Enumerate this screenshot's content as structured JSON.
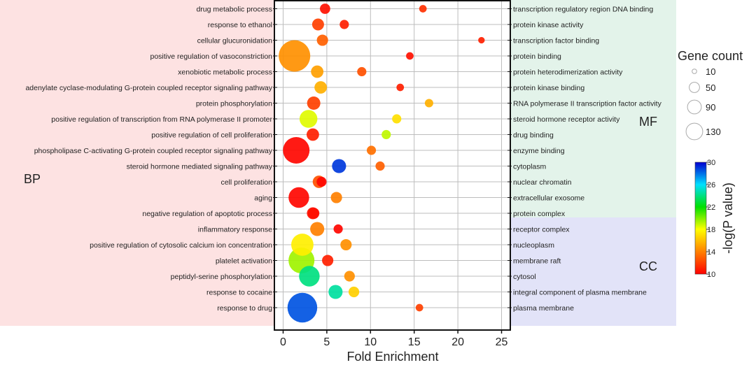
{
  "chart_data": {
    "type": "scatter",
    "xlabel": "Fold Enrichment",
    "xlim": [
      -1,
      26
    ],
    "xticks": [
      0,
      5,
      10,
      15,
      20,
      25
    ],
    "grid": true,
    "groups": {
      "BP": "BP",
      "MF": "MF",
      "CC": "CC"
    },
    "group_colors": {
      "BP": "#fde2e2",
      "MF": "#e3f3ea",
      "CC": "#e2e3f8"
    },
    "left_terms": [
      "drug metabolic process",
      "response to ethanol",
      "cellular glucuronidation",
      "positive regulation of vasoconstriction",
      "xenobiotic metabolic process",
      "adenylate cyclase-modulating G-protein coupled receptor signaling pathway",
      "protein phosphorylation",
      "positive regulation of transcription from RNA polymerase II promoter",
      "positive regulation of cell proliferation",
      "phospholipase C-activating G-protein coupled receptor signaling pathway",
      "steroid hormone mediated signaling pathway",
      "cell proliferation",
      "aging",
      "negative regulation of apoptotic process",
      "inflammatory response",
      "positive regulation of cytosolic calcium ion concentration",
      "platelet activation",
      "peptidyl-serine phosphorylation",
      "response to cocaine",
      "response to drug"
    ],
    "right_terms": [
      "transcription regulatory region DNA binding",
      "protein kinase activity",
      "transcription factor binding",
      "protein binding",
      "protein heterodimerization activity",
      "protein kinase binding",
      "RNA polymerase II transcription factor activity",
      "steroid hormone receptor activity",
      "drug binding",
      "enzyme binding",
      "cytoplasm",
      "nuclear chromatin",
      "extracellular exosome",
      "protein complex",
      "receptor complex",
      "nucleoplasm",
      "membrane raft",
      "cytosol",
      "integral component of plasma membrane",
      "plasma membrane"
    ],
    "points": [
      {
        "term": "drug metabolic process",
        "category": "BP",
        "fold": 4.8,
        "count": 15,
        "neglogp": 10.5
      },
      {
        "term": "response to ethanol",
        "category": "BP",
        "fold": 4.0,
        "count": 20,
        "neglogp": 12.0
      },
      {
        "term": "cellular glucuronidation",
        "category": "BP",
        "fold": 4.5,
        "count": 18,
        "neglogp": 13.0
      },
      {
        "term": "positive regulation of vasoconstriction",
        "category": "BP",
        "fold": 1.3,
        "count": 140,
        "neglogp": 14.5
      },
      {
        "term": "xenobiotic metabolic process",
        "category": "BP",
        "fold": 3.9,
        "count": 22,
        "neglogp": 15.0
      },
      {
        "term": "adenylate cyclase-modulating G-protein coupled receptor signaling pathway",
        "category": "BP",
        "fold": 4.3,
        "count": 22,
        "neglogp": 15.5
      },
      {
        "term": "protein phosphorylation",
        "category": "BP",
        "fold": 3.5,
        "count": 25,
        "neglogp": 12.0
      },
      {
        "term": "positive regulation of transcription from RNA polymerase II promoter",
        "category": "BP",
        "fold": 2.9,
        "count": 45,
        "neglogp": 18.5
      },
      {
        "term": "positive regulation of cell proliferation",
        "category": "BP",
        "fold": 3.4,
        "count": 22,
        "neglogp": 11.0
      },
      {
        "term": "phospholipase C-activating G-protein coupled receptor signaling pathway",
        "category": "BP",
        "fold": 1.5,
        "count": 100,
        "neglogp": 10.2
      },
      {
        "term": "steroid hormone mediated signaling pathway",
        "category": "BP",
        "fold": 6.4,
        "count": 28,
        "neglogp": 29.0
      },
      {
        "term": "cell proliferation",
        "category": "BP",
        "fold": 4.1,
        "count": 22,
        "neglogp": 12.5
      },
      {
        "term": "aging",
        "category": "BP",
        "fold": 1.8,
        "count": 60,
        "neglogp": 10.2
      },
      {
        "term": "negative regulation of apoptotic process",
        "category": "BP",
        "fold": 3.4,
        "count": 20,
        "neglogp": 10.5
      },
      {
        "term": "inflammatory response",
        "category": "BP",
        "fold": 3.9,
        "count": 28,
        "neglogp": 14.0
      },
      {
        "term": "positive regulation of cytosolic calcium ion concentration",
        "category": "BP",
        "fold": 2.2,
        "count": 70,
        "neglogp": 17.5
      },
      {
        "term": "platelet activation",
        "category": "BP",
        "fold": 2.1,
        "count": 95,
        "neglogp": 19.5
      },
      {
        "term": "peptidyl-serine phosphorylation",
        "category": "BP",
        "fold": 3.0,
        "count": 60,
        "neglogp": 24.0
      },
      {
        "term": "response to cocaine",
        "category": "BP",
        "fold": 6.0,
        "count": 28,
        "neglogp": 24.5
      },
      {
        "term": "response to drug",
        "category": "BP",
        "fold": 2.2,
        "count": 125,
        "neglogp": 28.5
      },
      {
        "term": "transcription regulatory region DNA binding",
        "category": "MF",
        "fold": 16.0,
        "count": 8,
        "neglogp": 11.5
      },
      {
        "term": "protein kinase activity",
        "category": "MF",
        "fold": 7.0,
        "count": 12,
        "neglogp": 11.0
      },
      {
        "term": "transcription factor binding",
        "category": "MF",
        "fold": 22.7,
        "count": 6,
        "neglogp": 11.0
      },
      {
        "term": "protein binding",
        "category": "MF",
        "fold": 14.5,
        "count": 8,
        "neglogp": 10.5
      },
      {
        "term": "protein heterodimerization activity",
        "category": "MF",
        "fold": 9.0,
        "count": 12,
        "neglogp": 12.5
      },
      {
        "term": "protein kinase binding",
        "category": "MF",
        "fold": 13.4,
        "count": 8,
        "neglogp": 11.0
      },
      {
        "term": "RNA polymerase II transcription factor activity",
        "category": "MF",
        "fold": 16.7,
        "count": 10,
        "neglogp": 15.5
      },
      {
        "term": "steroid hormone receptor activity",
        "category": "MF",
        "fold": 13.0,
        "count": 12,
        "neglogp": 17.0
      },
      {
        "term": "drug binding",
        "category": "MF",
        "fold": 11.8,
        "count": 12,
        "neglogp": 19.0
      },
      {
        "term": "enzyme binding",
        "category": "MF",
        "fold": 10.1,
        "count": 12,
        "neglogp": 13.5
      },
      {
        "term": "cytoplasm",
        "category": "CC",
        "fold": 11.1,
        "count": 12,
        "neglogp": 13.0
      },
      {
        "term": "nuclear chromatin",
        "category": "CC",
        "fold": 4.4,
        "count": 14,
        "neglogp": 10.2
      },
      {
        "term": "extracellular exosome",
        "category": "CC",
        "fold": 6.1,
        "count": 18,
        "neglogp": 14.0
      },
      {
        "term": "protein complex",
        "category": "CC",
        "fold": 3.5,
        "count": 18,
        "neglogp": 10.5
      },
      {
        "term": "receptor complex",
        "category": "CC",
        "fold": 6.3,
        "count": 12,
        "neglogp": 10.2
      },
      {
        "term": "nucleoplasm",
        "category": "CC",
        "fold": 7.2,
        "count": 18,
        "neglogp": 14.5
      },
      {
        "term": "membrane raft",
        "category": "CC",
        "fold": 5.1,
        "count": 18,
        "neglogp": 11.0
      },
      {
        "term": "cytosol",
        "category": "CC",
        "fold": 7.6,
        "count": 16,
        "neglogp": 14.5
      },
      {
        "term": "integral component of plasma membrane",
        "category": "CC",
        "fold": 8.1,
        "count": 16,
        "neglogp": 16.5
      },
      {
        "term": "plasma membrane",
        "category": "CC",
        "fold": 15.6,
        "count": 8,
        "neglogp": 12.0
      }
    ],
    "size_legend": {
      "title": "Gene count",
      "entries": [
        {
          "label": "10",
          "value": 10
        },
        {
          "label": "50",
          "value": 50
        },
        {
          "label": "90",
          "value": 90
        },
        {
          "label": "130",
          "value": 130
        }
      ]
    },
    "color_legend": {
      "title": "-log(P value)",
      "min": 10,
      "max": 30,
      "ticks": [
        {
          "label": "10",
          "value": 10
        },
        {
          "label": "14",
          "value": 14
        },
        {
          "label": "18",
          "value": 18
        },
        {
          "label": "22",
          "value": 22
        },
        {
          "label": "26",
          "value": 26
        },
        {
          "label": "30",
          "value": 30
        }
      ],
      "stops": [
        "#ff0000",
        "#ff8000",
        "#ffff00",
        "#00e000",
        "#00e0ff",
        "#0000d0"
      ]
    }
  }
}
